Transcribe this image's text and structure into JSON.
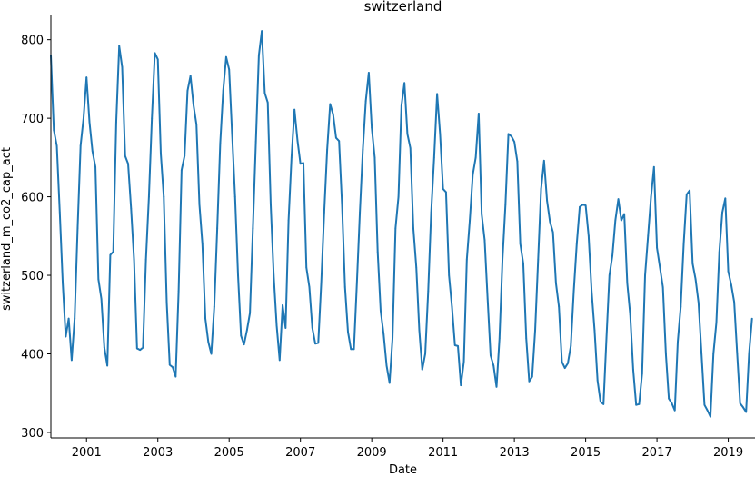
{
  "chart_data": {
    "type": "line",
    "title": "switzerland",
    "xlabel": "Date",
    "ylabel": "switzerland_m_co2_cap_act",
    "xlim": [
      "2000-01",
      "2019-10"
    ],
    "ylim": [
      293,
      832
    ],
    "x_ticks": [
      2001,
      2003,
      2005,
      2007,
      2009,
      2011,
      2013,
      2015,
      2017,
      2019
    ],
    "y_ticks": [
      300,
      400,
      500,
      600,
      700,
      800
    ],
    "grid": false,
    "legend": "none",
    "colors": {
      "line": "#1f77b4",
      "axis": "#000000"
    },
    "series": [
      {
        "start": "2000-01",
        "frequency": "monthly",
        "values": [
          780,
          685,
          665,
          580,
          490,
          422,
          445,
          392,
          445,
          560,
          665,
          700,
          752,
          695,
          658,
          638,
          495,
          470,
          408,
          385,
          526,
          530,
          695,
          792,
          765,
          652,
          642,
          585,
          520,
          407,
          405,
          408,
          520,
          600,
          700,
          783,
          775,
          655,
          600,
          465,
          386,
          383,
          371,
          480,
          634,
          652,
          735,
          754,
          717,
          692,
          590,
          540,
          445,
          415,
          400,
          460,
          560,
          668,
          735,
          778,
          762,
          680,
          600,
          500,
          423,
          412,
          430,
          452,
          560,
          670,
          780,
          811,
          732,
          720,
          590,
          500,
          436,
          392,
          462,
          433,
          570,
          650,
          711,
          672,
          642,
          643,
          510,
          485,
          433,
          413,
          414,
          490,
          580,
          660,
          718,
          705,
          675,
          671,
          590,
          485,
          428,
          406,
          406,
          490,
          580,
          660,
          722,
          758,
          688,
          650,
          530,
          455,
          425,
          385,
          363,
          420,
          560,
          600,
          716,
          745,
          680,
          662,
          560,
          510,
          430,
          380,
          400,
          480,
          580,
          650,
          731,
          680,
          610,
          606,
          500,
          460,
          411,
          410,
          360,
          390,
          520,
          570,
          628,
          650,
          706,
          578,
          545,
          470,
          398,
          385,
          358,
          420,
          520,
          590,
          680,
          677,
          670,
          645,
          540,
          515,
          420,
          365,
          371,
          430,
          520,
          610,
          646,
          595,
          568,
          555,
          490,
          460,
          390,
          382,
          388,
          410,
          480,
          540,
          587,
          590,
          589,
          550,
          480,
          430,
          366,
          339,
          336,
          420,
          500,
          525,
          570,
          597,
          570,
          578,
          490,
          450,
          380,
          335,
          336,
          375,
          500,
          550,
          600,
          638,
          535,
          510,
          485,
          400,
          343,
          337,
          328,
          415,
          460,
          540,
          603,
          608,
          515,
          495,
          465,
          400,
          335,
          328,
          320,
          400,
          440,
          530,
          580,
          598,
          505,
          488,
          466,
          400,
          337,
          332,
          326,
          400,
          445
        ]
      }
    ]
  }
}
